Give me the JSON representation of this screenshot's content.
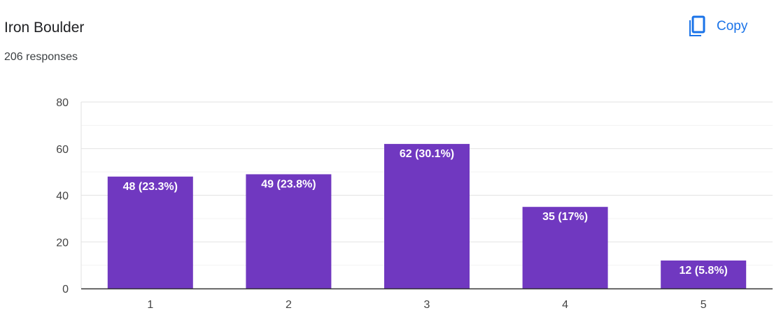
{
  "header": {
    "title": "Iron Boulder",
    "responses": "206 responses"
  },
  "toolbar": {
    "copy_label": "Copy",
    "copy_icon": "copy-icon"
  },
  "colors": {
    "bar": "#7038c0",
    "accent": "#1a73e8",
    "grid": "#ebebeb",
    "axis": "#333333"
  },
  "chart_data": {
    "type": "bar",
    "categories": [
      "1",
      "2",
      "3",
      "4",
      "5"
    ],
    "values": [
      48,
      49,
      62,
      35,
      12
    ],
    "data_labels": [
      "48 (23.3%)",
      "49 (23.8%)",
      "62 (30.1%)",
      "35 (17%)",
      "12 (5.8%)"
    ],
    "title": "Iron Boulder",
    "xlabel": "",
    "ylabel": "",
    "ylim": [
      0,
      80
    ],
    "yticks": [
      0,
      20,
      40,
      60,
      80
    ],
    "grid": true,
    "legend": "none"
  }
}
